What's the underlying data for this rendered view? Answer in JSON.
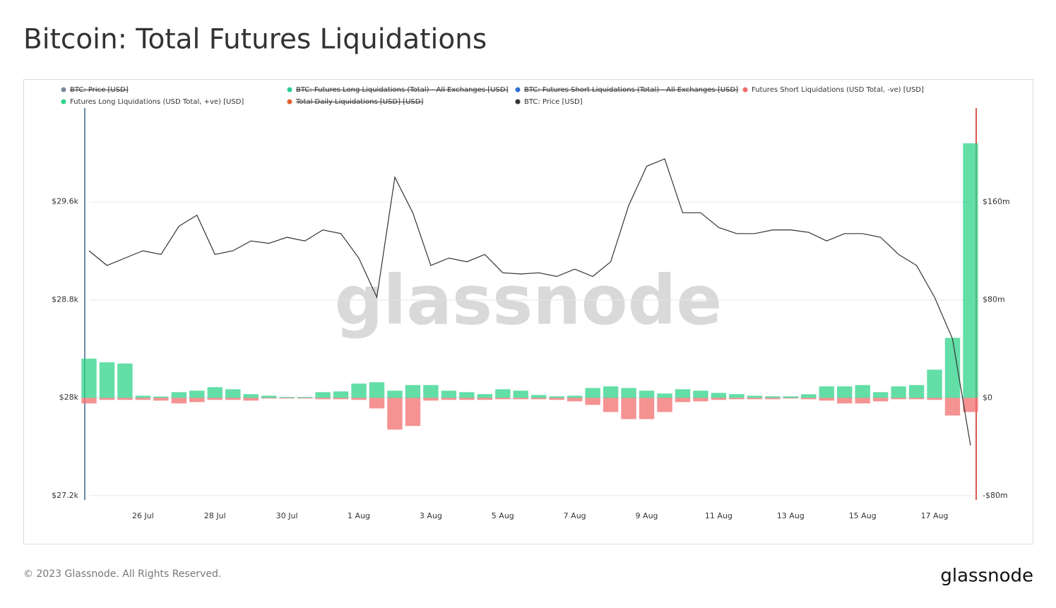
{
  "chart_data": {
    "type": "combo",
    "title": "Bitcoin: Total Futures Liquidations",
    "watermark": "glassnode",
    "footer": "© 2023 Glassnode. All Rights Reserved.",
    "brand": "glassnode",
    "categories": [
      null,
      null,
      null,
      "26 Jul",
      null,
      null,
      null,
      "28 Jul",
      null,
      null,
      null,
      "30 Jul",
      null,
      null,
      null,
      "1 Aug",
      null,
      null,
      null,
      "3 Aug",
      null,
      null,
      null,
      "5 Aug",
      null,
      null,
      null,
      "7 Aug",
      null,
      null,
      null,
      "9 Aug",
      null,
      null,
      null,
      "11 Aug",
      null,
      null,
      null,
      "13 Aug",
      null,
      null,
      null,
      "15 Aug",
      null,
      null,
      null,
      "17 Aug",
      null,
      null
    ],
    "ylim": [
      27165,
      30365
    ],
    "yticks": [
      {
        "value": 27200,
        "label": "$27.2k"
      },
      {
        "value": 28000,
        "label": "$28k"
      },
      {
        "value": 28800,
        "label": "$28.8k"
      },
      {
        "value": 29600,
        "label": "$29.6k"
      }
    ],
    "y2lim": [
      -83500000,
      236800000
    ],
    "y2ticks": [
      {
        "value": -80000000,
        "label": "-$80m"
      },
      {
        "value": 0,
        "label": "$0"
      },
      {
        "value": 80000000,
        "label": "$80m"
      },
      {
        "value": 160000000,
        "label": "$160m"
      }
    ],
    "grid": true,
    "series": [
      {
        "name": "BTC: Price [USD]",
        "color": "#7d8a99",
        "hidden": true
      },
      {
        "name": "BTC: Futures Long Liquidations (Total) - All Exchanges [USD]",
        "color": "#2ecc9a",
        "hidden": true
      },
      {
        "name": "BTC: Futures Short Liquidations (Total) - All Exchanges [USD]",
        "color": "#2f6fd6",
        "hidden": true
      },
      {
        "name": "Futures Short Liquidations (USD Total, -ve) [USD]",
        "color": "#f26d6d",
        "type": "bar",
        "axis": "y2",
        "values": [
          -4600000,
          -1700000,
          -1700000,
          -1700000,
          -2300000,
          -4600000,
          -3500000,
          -1700000,
          -1700000,
          -2300000,
          -600000,
          -600000,
          -600000,
          -1200000,
          -1200000,
          -1700000,
          -8700000,
          -26000000,
          -23000000,
          -2300000,
          -1700000,
          -1700000,
          -1700000,
          -1200000,
          -1200000,
          -1200000,
          -1700000,
          -2900000,
          -5800000,
          -11600000,
          -17400000,
          -17400000,
          -11600000,
          -3500000,
          -2900000,
          -1700000,
          -1200000,
          -1200000,
          -1200000,
          -600000,
          -1200000,
          -2300000,
          -4600000,
          -4600000,
          -2900000,
          -1200000,
          -1200000,
          -1700000,
          -14500000,
          -11600000
        ]
      },
      {
        "name": "Futures Long Liquidations (USD Total, +ve) [USD]",
        "color": "#2fd38a",
        "type": "bar",
        "axis": "y2",
        "values": [
          32000000,
          29000000,
          28000000,
          1700000,
          1000000,
          4600000,
          5800000,
          8700000,
          7000000,
          3000000,
          1700000,
          600000,
          600000,
          4600000,
          5200000,
          11600000,
          12700000,
          5800000,
          10400000,
          10400000,
          5800000,
          4600000,
          3000000,
          7000000,
          5800000,
          2300000,
          1200000,
          1700000,
          8000000,
          9300000,
          8000000,
          5800000,
          3500000,
          7000000,
          5800000,
          4000000,
          3000000,
          1700000,
          1200000,
          1200000,
          2900000,
          9300000,
          9300000,
          10400000,
          4600000,
          9300000,
          10400000,
          23000000,
          49000000,
          208000000
        ]
      },
      {
        "name": "Total Daily Liquidations [USD] [USD]",
        "color": "#e0622a",
        "hidden": true
      },
      {
        "name": "BTC: Price [USD]",
        "color": "#333333",
        "type": "line",
        "values": [
          29200,
          29080,
          29140,
          29200,
          29170,
          29400,
          29490,
          29170,
          29200,
          29280,
          29260,
          29310,
          29280,
          29370,
          29340,
          29140,
          28820,
          29800,
          29510,
          29080,
          29140,
          29110,
          29170,
          29020,
          29010,
          29020,
          28990,
          29050,
          28990,
          29110,
          29570,
          29890,
          29950,
          29510,
          29510,
          29390,
          29340,
          29340,
          29370,
          29370,
          29350,
          29280,
          29340,
          29340,
          29310,
          29170,
          29080,
          28820,
          28480,
          27610
        ]
      }
    ]
  }
}
